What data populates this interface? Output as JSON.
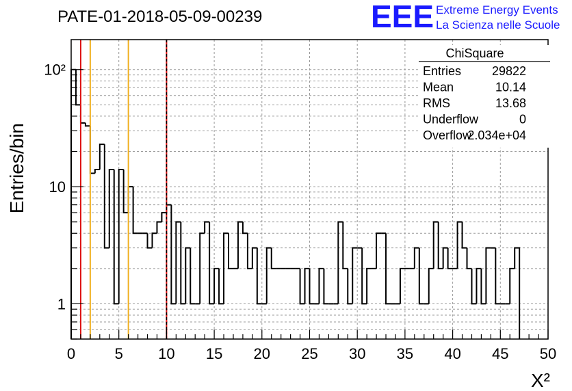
{
  "chart_data": {
    "type": "histogram",
    "title": "PATE-01-2018-05-09-00239",
    "xlabel": "X²",
    "ylabel": "Entries/bin",
    "xlim": [
      0,
      50
    ],
    "ylim": [
      0.5,
      180
    ],
    "yscale": "log",
    "grid": true,
    "bin_width": 0.5,
    "x_ticks": [
      "0",
      "5",
      "10",
      "15",
      "20",
      "25",
      "30",
      "35",
      "40",
      "45",
      "50"
    ],
    "y_ticks": [
      {
        "value": 1,
        "label": "1"
      },
      {
        "value": 10,
        "label": "10"
      },
      {
        "value": 100,
        "label": "10²"
      }
    ],
    "values": [
      100,
      50,
      35,
      33,
      13,
      14,
      23,
      3,
      14,
      1,
      14,
      6,
      10,
      4,
      4,
      4,
      3,
      4,
      5,
      6,
      7,
      1,
      5,
      1,
      3,
      1,
      1,
      4,
      5,
      1,
      2,
      1,
      4,
      2,
      2,
      5,
      4,
      2,
      3,
      1,
      1,
      3,
      2,
      2,
      2,
      2,
      2,
      2,
      1,
      2,
      1,
      1,
      2,
      1,
      1,
      1,
      5,
      2,
      1,
      3,
      3,
      1,
      2,
      2,
      4,
      4,
      1,
      1,
      1,
      2,
      2,
      2,
      3,
      1,
      1,
      2,
      5,
      2,
      3,
      2,
      2,
      5,
      3,
      2,
      1,
      2,
      1,
      3,
      3,
      1,
      1,
      1,
      2,
      3
    ],
    "vertical_lines": [
      {
        "x": 1,
        "color": "#dd1111",
        "style": "solid"
      },
      {
        "x": 2,
        "color": "#f0b020",
        "style": "solid"
      },
      {
        "x": 6,
        "color": "#f0b020",
        "style": "solid"
      },
      {
        "x": 10,
        "color": "#dd1111",
        "style": "solid"
      },
      {
        "x": 10,
        "color": "#000000",
        "style": "dashed"
      }
    ],
    "stats_box": {
      "name": "ChiSquare",
      "rows": [
        {
          "label": "Entries",
          "value": "29822"
        },
        {
          "label": "Mean",
          "value": "10.14"
        },
        {
          "label": "RMS",
          "value": "13.68"
        },
        {
          "label": "Underflow",
          "value": "0"
        },
        {
          "label": "Overflow",
          "value": "2.034e+04"
        }
      ]
    }
  },
  "branding": {
    "logo": "EEE",
    "line1": "Extreme Energy Events",
    "line2": "La Scienza nelle Scuole",
    "color": "#1a1aff"
  }
}
